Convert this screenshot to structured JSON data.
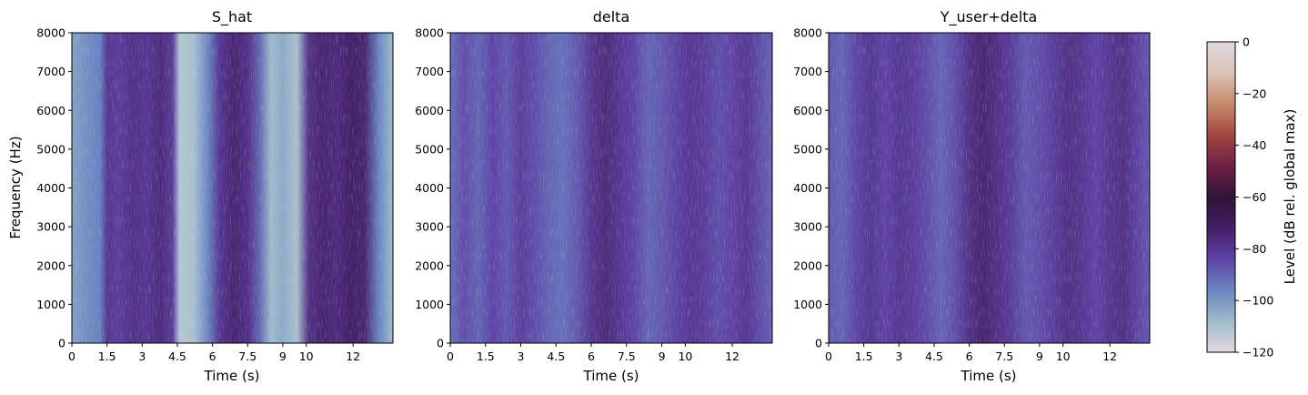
{
  "chart_data": [
    {
      "type": "heatmap",
      "title": "S_hat",
      "xlabel": "Time (s)",
      "ylabel": "Frequency (Hz)",
      "xlim": [
        0,
        13.7
      ],
      "ylim": [
        0,
        8000
      ],
      "xticks": [
        0,
        1.5,
        3,
        4.5,
        6,
        7.5,
        9,
        10,
        12
      ],
      "xtick_labels": [
        "0",
        "1.5",
        "3",
        "4.5",
        "6",
        "7.5",
        "9",
        "10",
        "12"
      ],
      "yticks": [
        0,
        1000,
        2000,
        3000,
        4000,
        5000,
        6000,
        7000,
        8000
      ],
      "ytick_labels": [
        "0",
        "1000",
        "2000",
        "3000",
        "4000",
        "5000",
        "6000",
        "7000",
        "8000"
      ],
      "activity": [
        {
          "t": 0,
          "level": -102
        },
        {
          "t": 0.6,
          "level": -98
        },
        {
          "t": 1.2,
          "level": -95
        },
        {
          "t": 1.5,
          "level": -80
        },
        {
          "t": 2.0,
          "level": -82
        },
        {
          "t": 2.6,
          "level": -78
        },
        {
          "t": 3.2,
          "level": -80
        },
        {
          "t": 3.8,
          "level": -76
        },
        {
          "t": 4.3,
          "level": -82
        },
        {
          "t": 4.6,
          "level": -112
        },
        {
          "t": 5.2,
          "level": -110
        },
        {
          "t": 5.8,
          "level": -96
        },
        {
          "t": 6.3,
          "level": -80
        },
        {
          "t": 6.9,
          "level": -74
        },
        {
          "t": 7.5,
          "level": -78
        },
        {
          "t": 8.0,
          "level": -90
        },
        {
          "t": 8.5,
          "level": -108
        },
        {
          "t": 9.0,
          "level": -104
        },
        {
          "t": 9.6,
          "level": -110
        },
        {
          "t": 10.1,
          "level": -78
        },
        {
          "t": 10.7,
          "level": -74
        },
        {
          "t": 11.3,
          "level": -76
        },
        {
          "t": 11.9,
          "level": -72
        },
        {
          "t": 12.5,
          "level": -74
        },
        {
          "t": 13.1,
          "level": -96
        },
        {
          "t": 13.7,
          "level": -108
        }
      ]
    },
    {
      "type": "heatmap",
      "title": "delta",
      "xlabel": "Time (s)",
      "ylabel": "",
      "xlim": [
        0,
        13.7
      ],
      "ylim": [
        0,
        8000
      ],
      "xticks": [
        0,
        1.5,
        3,
        4.5,
        6,
        7.5,
        9,
        10,
        12
      ],
      "xtick_labels": [
        "0",
        "1.5",
        "3",
        "4.5",
        "6",
        "7.5",
        "9",
        "10",
        "12"
      ],
      "yticks": [
        0,
        1000,
        2000,
        3000,
        4000,
        5000,
        6000,
        7000,
        8000
      ],
      "ytick_labels": [
        "0",
        "1000",
        "2000",
        "3000",
        "4000",
        "5000",
        "6000",
        "7000",
        "8000"
      ],
      "activity": [
        {
          "t": 0,
          "level": -92
        },
        {
          "t": 0.6,
          "level": -86
        },
        {
          "t": 1.2,
          "level": -90
        },
        {
          "t": 1.8,
          "level": -84
        },
        {
          "t": 2.4,
          "level": -88
        },
        {
          "t": 3.0,
          "level": -82
        },
        {
          "t": 3.6,
          "level": -86
        },
        {
          "t": 4.2,
          "level": -90
        },
        {
          "t": 4.8,
          "level": -92
        },
        {
          "t": 5.4,
          "level": -88
        },
        {
          "t": 6.0,
          "level": -80
        },
        {
          "t": 6.6,
          "level": -76
        },
        {
          "t": 7.2,
          "level": -80
        },
        {
          "t": 7.8,
          "level": -84
        },
        {
          "t": 8.4,
          "level": -90
        },
        {
          "t": 9.0,
          "level": -88
        },
        {
          "t": 9.6,
          "level": -84
        },
        {
          "t": 10.2,
          "level": -80
        },
        {
          "t": 10.8,
          "level": -82
        },
        {
          "t": 11.4,
          "level": -86
        },
        {
          "t": 12.0,
          "level": -84
        },
        {
          "t": 12.6,
          "level": -80
        },
        {
          "t": 13.2,
          "level": -86
        },
        {
          "t": 13.7,
          "level": -90
        }
      ]
    },
    {
      "type": "heatmap",
      "title": "Y_user+delta",
      "xlabel": "Time (s)",
      "ylabel": "",
      "xlim": [
        0,
        13.7
      ],
      "ylim": [
        0,
        8000
      ],
      "xticks": [
        0,
        1.5,
        3,
        4.5,
        6,
        7.5,
        9,
        10,
        12
      ],
      "xtick_labels": [
        "0",
        "1.5",
        "3",
        "4.5",
        "6",
        "7.5",
        "9",
        "10",
        "12"
      ],
      "yticks": [
        0,
        1000,
        2000,
        3000,
        4000,
        5000,
        6000,
        7000,
        8000
      ],
      "ytick_labels": [
        "0",
        "1000",
        "2000",
        "3000",
        "4000",
        "5000",
        "6000",
        "7000",
        "8000"
      ],
      "activity": [
        {
          "t": 0,
          "level": -88
        },
        {
          "t": 0.6,
          "level": -90
        },
        {
          "t": 1.2,
          "level": -84
        },
        {
          "t": 1.8,
          "level": -80
        },
        {
          "t": 2.4,
          "level": -84
        },
        {
          "t": 3.0,
          "level": -80
        },
        {
          "t": 3.6,
          "level": -82
        },
        {
          "t": 4.2,
          "level": -86
        },
        {
          "t": 4.8,
          "level": -90
        },
        {
          "t": 5.4,
          "level": -86
        },
        {
          "t": 6.0,
          "level": -78
        },
        {
          "t": 6.6,
          "level": -74
        },
        {
          "t": 7.2,
          "level": -78
        },
        {
          "t": 7.8,
          "level": -82
        },
        {
          "t": 8.4,
          "level": -88
        },
        {
          "t": 9.0,
          "level": -86
        },
        {
          "t": 9.6,
          "level": -82
        },
        {
          "t": 10.2,
          "level": -78
        },
        {
          "t": 10.8,
          "level": -80
        },
        {
          "t": 11.4,
          "level": -84
        },
        {
          "t": 12.0,
          "level": -80
        },
        {
          "t": 12.6,
          "level": -78
        },
        {
          "t": 13.2,
          "level": -84
        },
        {
          "t": 13.7,
          "level": -88
        }
      ]
    }
  ],
  "colorbar": {
    "label": "Level (dB rel. global max)",
    "vmin": -120,
    "vmax": 0,
    "ticks": [
      0,
      -20,
      -40,
      -60,
      -80,
      -100,
      -120
    ],
    "tick_labels": [
      "0",
      "−20",
      "−40",
      "−60",
      "−80",
      "−100",
      "−120"
    ],
    "colormap": "twilight",
    "colors": [
      "#e2d9e2",
      "#9ebbc9",
      "#6a86c2",
      "#5e43a5",
      "#451f66",
      "#2f1436",
      "#6d2144",
      "#a24640",
      "#c68a6c",
      "#dac3b6",
      "#e2d9e2"
    ]
  }
}
